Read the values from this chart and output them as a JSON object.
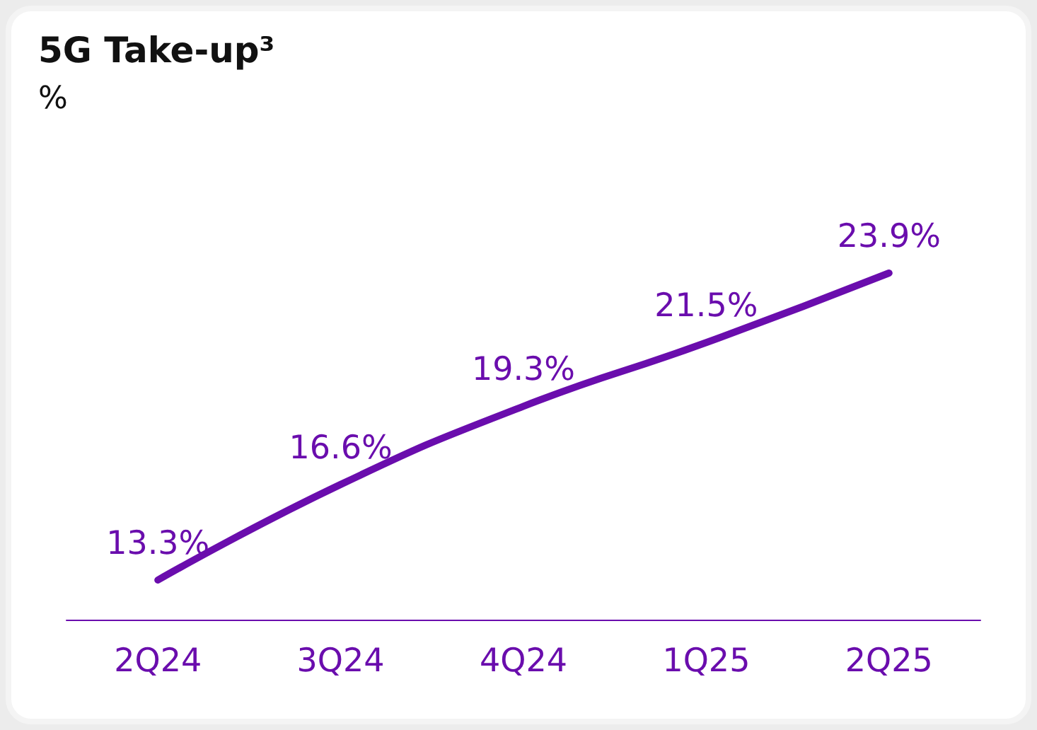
{
  "chart_data": {
    "type": "line",
    "title": "5G Take-up³",
    "subtitle": "%",
    "categories": [
      "2Q24",
      "3Q24",
      "4Q24",
      "1Q25",
      "2Q25"
    ],
    "series": [
      {
        "color": "#6a0dad",
        "values": [
          13.3,
          16.6,
          19.3,
          21.5,
          23.9
        ],
        "value_labels": [
          "13.3%",
          "16.6%",
          "19.3%",
          "21.5%",
          "23.9%"
        ]
      }
    ],
    "grid": false,
    "marker": "none",
    "line_style": "solid"
  }
}
